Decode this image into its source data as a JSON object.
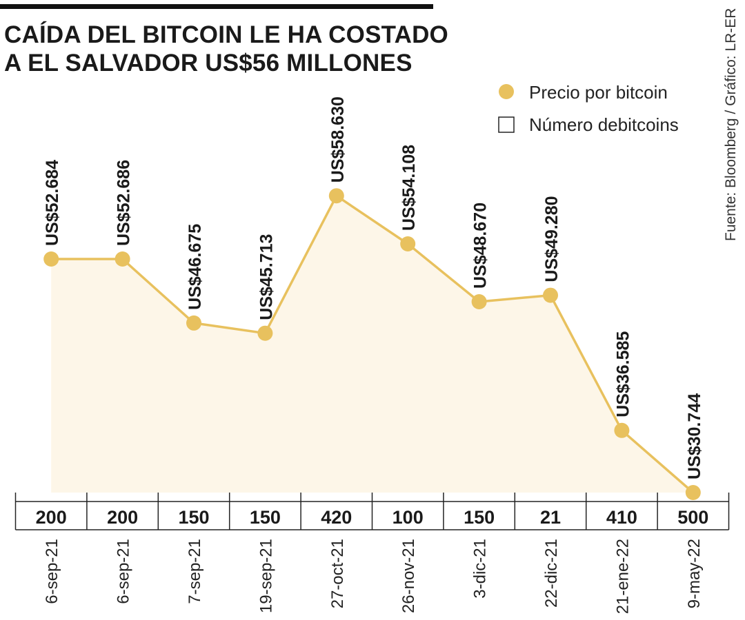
{
  "title": "CAÍDA DEL BITCOIN LE HA COSTADO A EL SALVADOR US$56 MILLONES",
  "source": "Fuente: Bloomberg / Gráfico: LR-ER",
  "colors": {
    "line": "#e8c15e",
    "marker": "#e8c15e",
    "fill": "#fdf6e8",
    "text": "#1a1a1a"
  },
  "chart_data": {
    "type": "line",
    "title": "CAÍDA DEL BITCOIN LE HA COSTADO A EL SALVADOR US$56 MILLONES",
    "xlabel": "",
    "ylabel": "",
    "grid": false,
    "legend": {
      "placement": "top-right",
      "entries": [
        {
          "label": "Precio por bitcoin",
          "marker": "filled-circle"
        },
        {
          "label": "Número debitcoins",
          "marker": "empty-square"
        }
      ]
    },
    "categories": [
      "6-sep-21",
      "6-sep-21",
      "7-sep-21",
      "19-sep-21",
      "27-oct-21",
      "26-nov-21",
      "3-dic-21",
      "22-dic-21",
      "21-ene-22",
      "9-may-22"
    ],
    "series": [
      {
        "name": "Precio por bitcoin",
        "values": [
          52684,
          52686,
          46675,
          45713,
          58630,
          54108,
          48670,
          49280,
          36585,
          30744
        ],
        "labels": [
          "US$52.684",
          "US$52.686",
          "US$46.675",
          "US$45.713",
          "US$58.630",
          "US$54.108",
          "US$48.670",
          "US$49.280",
          "US$36.585",
          "US$30.744"
        ]
      },
      {
        "name": "Número debitcoins",
        "values": [
          200,
          200,
          150,
          150,
          420,
          100,
          150,
          21,
          410,
          500
        ],
        "labels": [
          "200",
          "200",
          "150",
          "150",
          "420",
          "100",
          "150",
          "21",
          "410",
          "500"
        ]
      }
    ]
  }
}
